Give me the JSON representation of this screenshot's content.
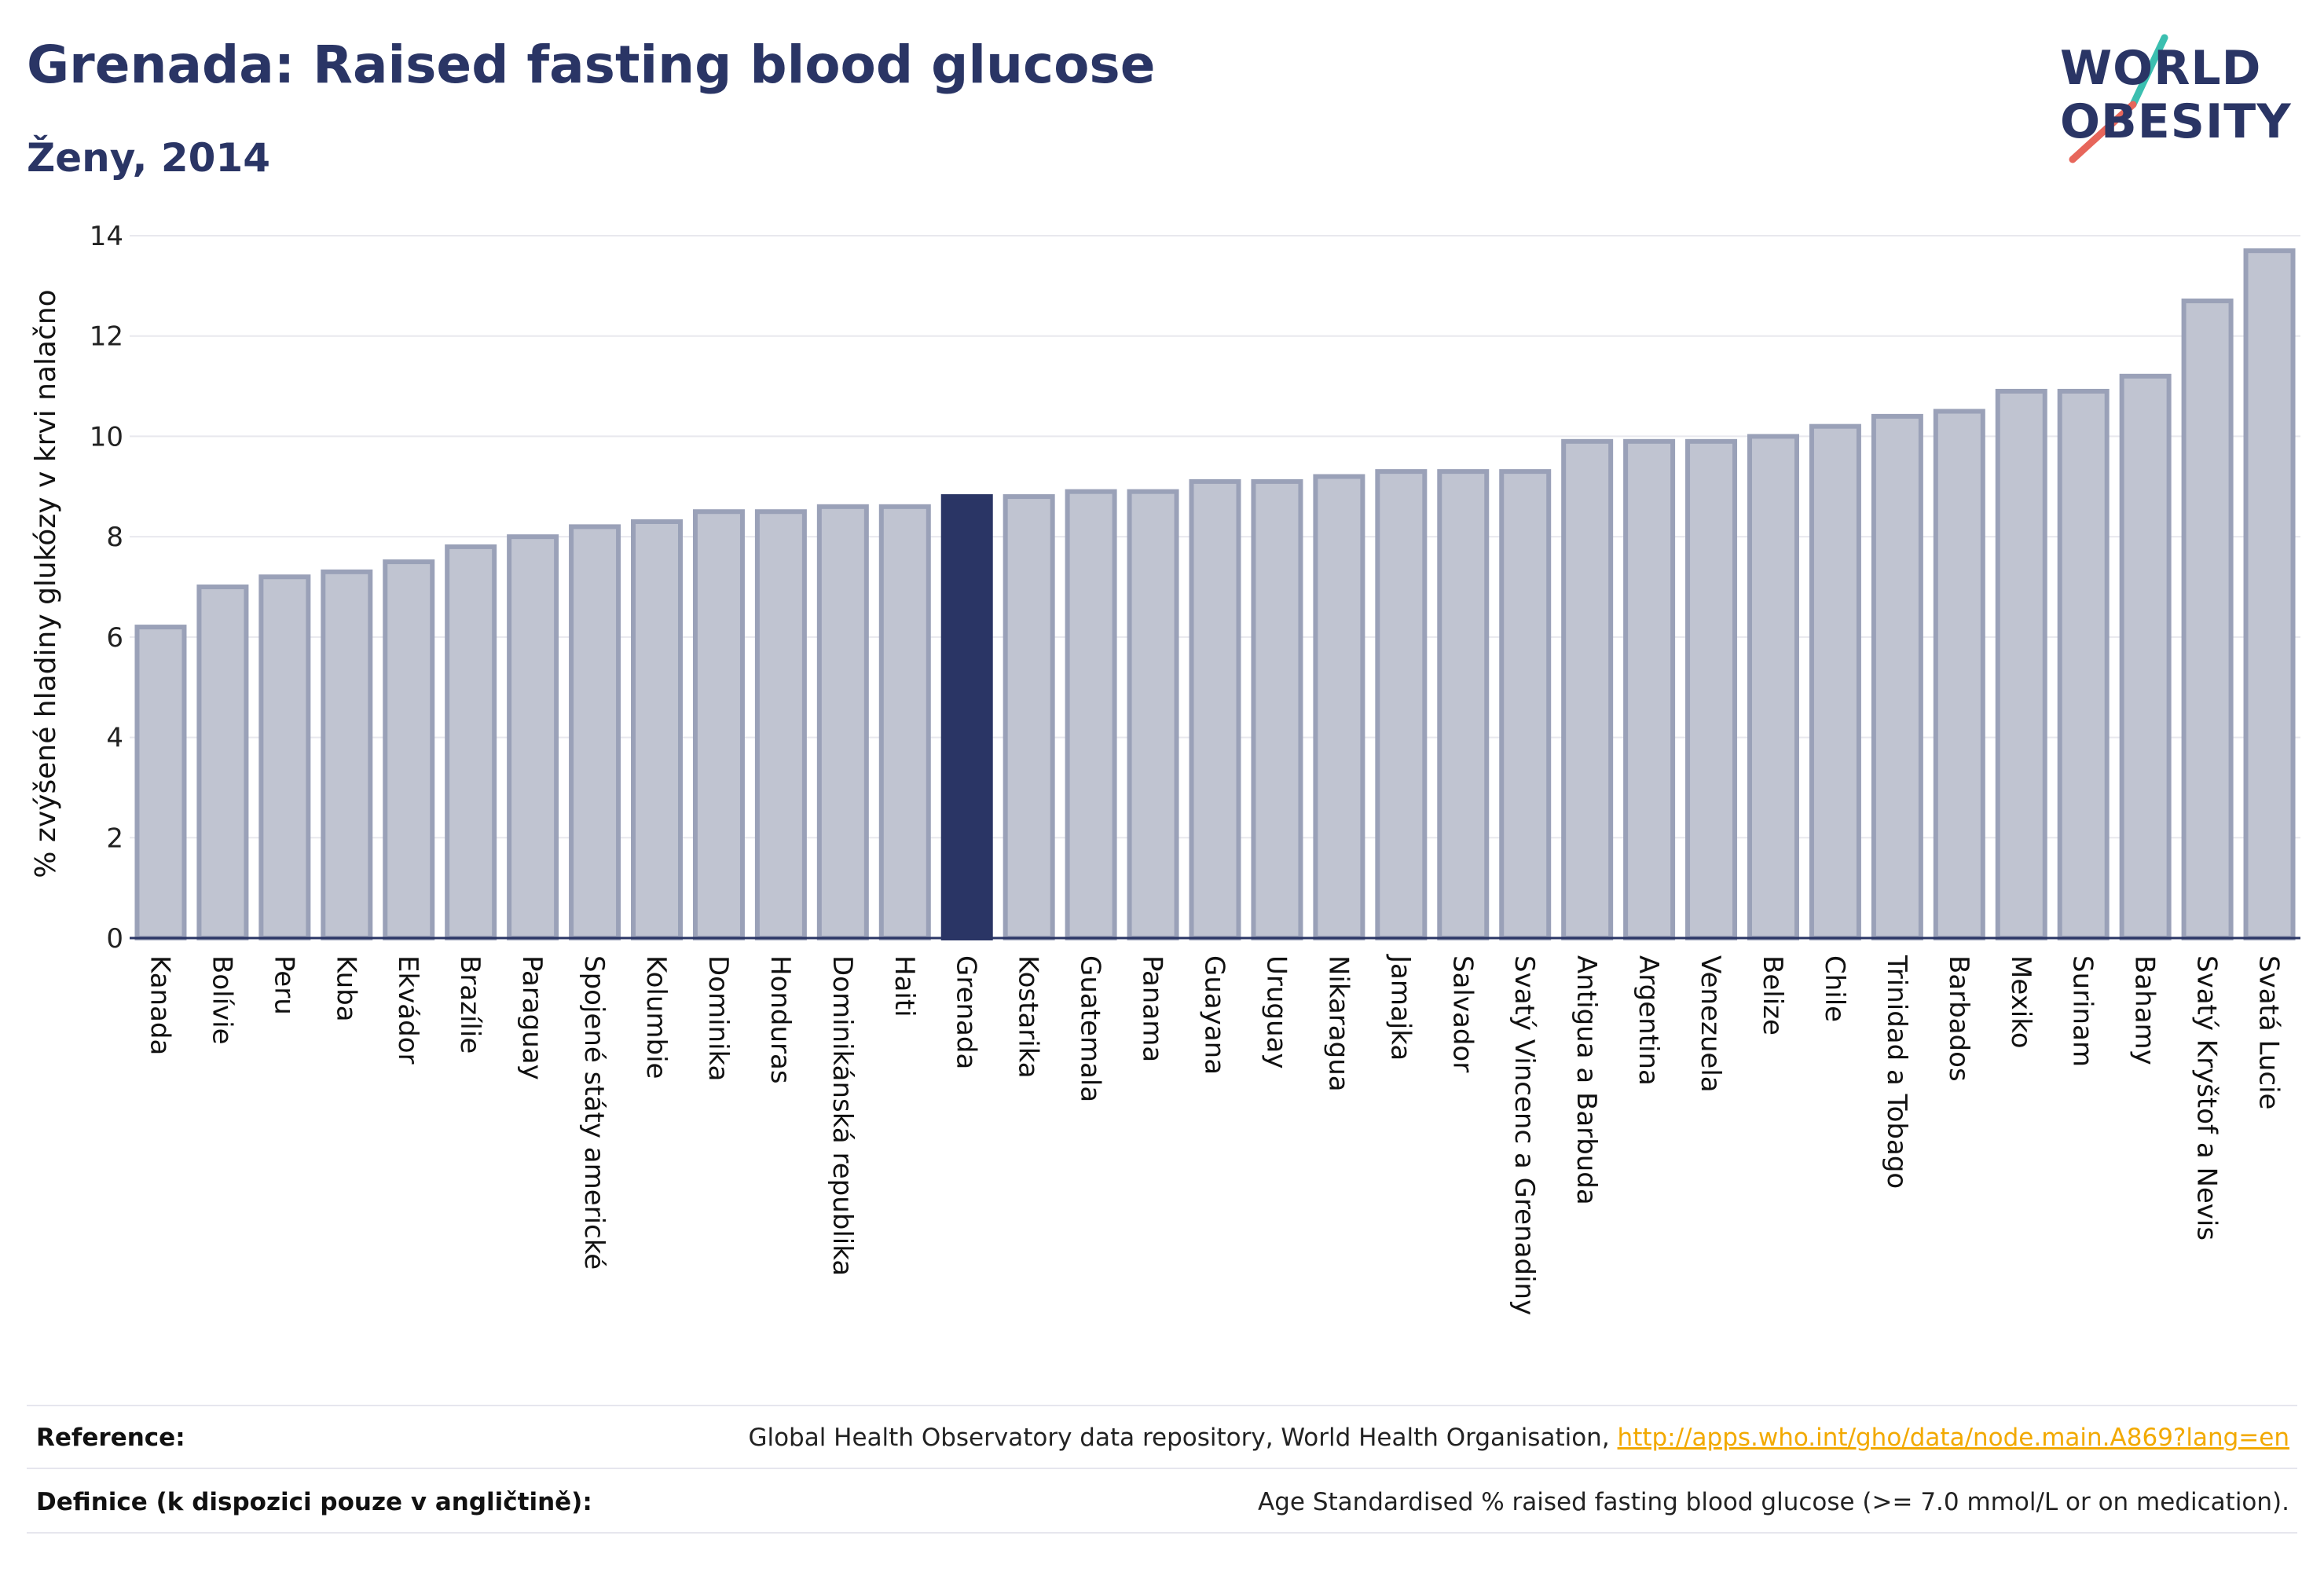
{
  "title": "Grenada: Raised fasting blood glucose",
  "subtitle": "Ženy, 2014",
  "logo": {
    "line1": "WORLD",
    "line2": "OBESITY"
  },
  "footer": {
    "reference_label": "Reference:",
    "reference_text": "Global Health Observatory data repository, World Health Organisation, ",
    "reference_link": "http://apps.who.int/gho/data/node.main.A869?lang=en",
    "definition_label": "Definice (k dispozici pouze v angličtině):",
    "definition_text": "Age Standardised % raised fasting blood glucose (>= 7.0 mmol/L or on medication)."
  },
  "colors": {
    "bar": "#c0c4d1",
    "bar_stroke": "#9aa1b8",
    "highlight": "#2a3565",
    "title": "#2a3565",
    "grid": "#e8e8ee",
    "link": "#f2a900"
  },
  "chart_data": {
    "type": "bar",
    "ylabel": "% zvýšené hladiny glukózy v krvi nalačno",
    "xlabel": "",
    "ylim": [
      0,
      14
    ],
    "yticks": [
      0,
      2,
      4,
      6,
      8,
      10,
      12,
      14
    ],
    "grid": true,
    "highlight": "Grenada",
    "categories": [
      "Kanada",
      "Bolívie",
      "Peru",
      "Kuba",
      "Ekvádor",
      "Brazílie",
      "Paraguay",
      "Spojené státy americké",
      "Kolumbie",
      "Dominika",
      "Honduras",
      "Dominikánská republika",
      "Haiti",
      "Grenada",
      "Kostarika",
      "Guatemala",
      "Panama",
      "Guayana",
      "Uruguay",
      "Nikaragua",
      "Jamajka",
      "Salvador",
      "Svatý Vincenc a Grenadiny",
      "Antigua a Barbuda",
      "Argentina",
      "Venezuela",
      "Belize",
      "Chile",
      "Trinidad a Tobago",
      "Barbados",
      "Mexiko",
      "Surinam",
      "Bahamy",
      "Svatý Kryštof a Nevis",
      "Svatá Lucie"
    ],
    "values": [
      6.2,
      7.0,
      7.2,
      7.3,
      7.5,
      7.8,
      8.0,
      8.2,
      8.3,
      8.5,
      8.5,
      8.6,
      8.6,
      8.8,
      8.8,
      8.9,
      8.9,
      9.1,
      9.1,
      9.2,
      9.3,
      9.3,
      9.3,
      9.9,
      9.9,
      9.9,
      10.0,
      10.2,
      10.4,
      10.5,
      10.9,
      10.9,
      11.2,
      12.7,
      13.7
    ]
  }
}
